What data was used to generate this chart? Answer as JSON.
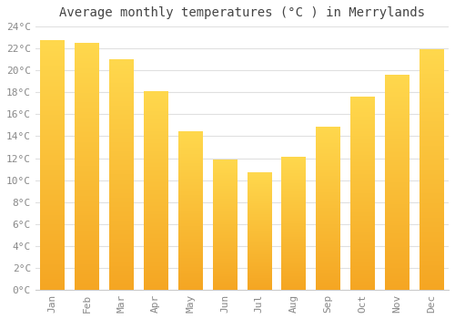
{
  "title": "Average monthly temperatures (°C ) in Merrylands",
  "months": [
    "Jan",
    "Feb",
    "Mar",
    "Apr",
    "May",
    "Jun",
    "Jul",
    "Aug",
    "Sep",
    "Oct",
    "Nov",
    "Dec"
  ],
  "values": [
    22.7,
    22.5,
    21.0,
    18.1,
    14.4,
    11.8,
    10.7,
    12.1,
    14.8,
    17.6,
    19.6,
    21.9
  ],
  "bar_color_bottom": "#F5A623",
  "bar_color_top": "#FFD84D",
  "background_color": "#ffffff",
  "grid_color": "#e0e0e0",
  "ylabel_color": "#888888",
  "xlabel_color": "#888888",
  "title_color": "#444444",
  "ylim": [
    0,
    24
  ],
  "yticks": [
    0,
    2,
    4,
    6,
    8,
    10,
    12,
    14,
    16,
    18,
    20,
    22,
    24
  ],
  "title_fontsize": 10,
  "tick_fontsize": 8,
  "bar_width": 0.7,
  "gradient_steps": 256
}
